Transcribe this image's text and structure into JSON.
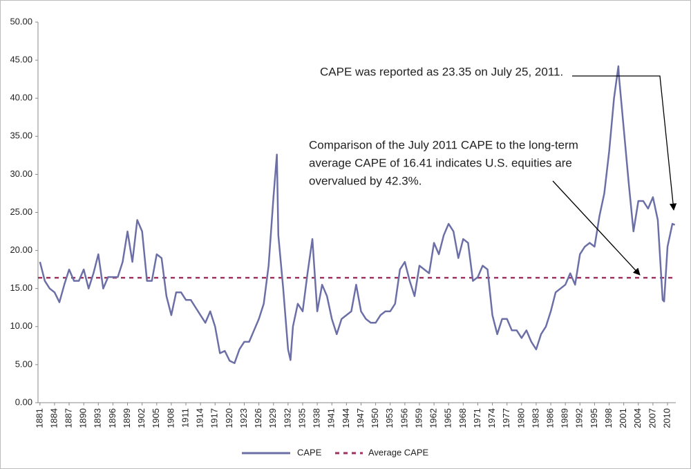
{
  "chart_data": {
    "type": "line",
    "annotations": [
      "CAPE was reported as 23.35 on July 25, 2011.",
      "Comparison of the July 2011 CAPE to the long-term",
      "average CAPE of 16.41 indicates U.S. equities are",
      "overvalued by 42.3%."
    ],
    "x": [
      1881,
      1882,
      1883,
      1884,
      1885,
      1886,
      1887,
      1888,
      1889,
      1890,
      1891,
      1892,
      1893,
      1894,
      1895,
      1896,
      1897,
      1898,
      1899,
      1900,
      1901,
      1902,
      1903,
      1904,
      1905,
      1906,
      1907,
      1908,
      1909,
      1910,
      1911,
      1912,
      1913,
      1914,
      1915,
      1916,
      1917,
      1918,
      1919,
      1920,
      1921,
      1922,
      1923,
      1924,
      1925,
      1926,
      1927,
      1928,
      1929,
      1929.7,
      1930,
      1931,
      1932,
      1932.5,
      1933,
      1934,
      1935,
      1936,
      1937,
      1938,
      1939,
      1940,
      1941,
      1942,
      1943,
      1944,
      1945,
      1946,
      1947,
      1948,
      1949,
      1950,
      1951,
      1952,
      1953,
      1954,
      1955,
      1956,
      1957,
      1958,
      1959,
      1960,
      1961,
      1962,
      1963,
      1964,
      1965,
      1966,
      1967,
      1968,
      1969,
      1970,
      1971,
      1972,
      1973,
      1974,
      1975,
      1976,
      1977,
      1978,
      1979,
      1980,
      1981,
      1982,
      1983,
      1984,
      1985,
      1986,
      1987,
      1988,
      1989,
      1990,
      1991,
      1992,
      1993,
      1994,
      1995,
      1996,
      1997,
      1998,
      1999,
      1999.9,
      2000,
      2001,
      2002,
      2003,
      2004,
      2005,
      2006,
      2007,
      2008,
      2009,
      2009.3,
      2010,
      2011,
      2011.5
    ],
    "series": [
      {
        "name": "CAPE",
        "color": "#6b6fa6",
        "values": [
          18.5,
          16,
          15,
          14.5,
          13.2,
          15.5,
          17.5,
          16,
          16,
          17.5,
          15,
          17,
          19.5,
          15,
          16.5,
          16.5,
          16.5,
          18.5,
          22.5,
          18.5,
          24,
          22.5,
          16,
          16,
          19.5,
          19,
          14,
          11.5,
          14.5,
          14.5,
          13.5,
          13.5,
          12.5,
          11.5,
          10.5,
          12,
          10,
          6.5,
          6.8,
          5.5,
          5.2,
          7,
          8,
          8,
          9.5,
          11,
          13,
          18,
          27,
          32.6,
          22,
          15,
          7,
          5.6,
          10,
          13,
          12,
          17,
          21.5,
          12,
          15.5,
          14,
          11,
          9,
          11,
          11.5,
          12,
          15.5,
          12,
          11,
          10.5,
          10.5,
          11.5,
          12,
          12,
          13,
          17.5,
          18.5,
          16,
          14,
          18,
          17.5,
          17,
          21,
          19.5,
          22,
          23.5,
          22.5,
          19,
          21.5,
          21,
          16,
          16.5,
          18,
          17.5,
          11.5,
          9,
          11,
          11,
          9.5,
          9.5,
          8.5,
          9.5,
          8,
          7,
          9,
          10,
          12,
          14.5,
          15,
          15.5,
          17,
          15.5,
          19.5,
          20.5,
          21,
          20.5,
          24.5,
          27.5,
          33,
          40,
          44.2,
          43,
          36,
          29,
          22.5,
          26.5,
          26.5,
          25.5,
          27,
          24,
          13.5,
          13.3,
          20.5,
          23.5,
          23.35
        ]
      }
    ],
    "reference_lines": [
      {
        "name": "Average CAPE",
        "value": 16.41,
        "color": "#a0305e"
      }
    ],
    "xlim": [
      1880.6,
      2011.7
    ],
    "xticks": [
      1881,
      1884,
      1887,
      1890,
      1893,
      1896,
      1899,
      1902,
      1905,
      1908,
      1911,
      1914,
      1917,
      1920,
      1923,
      1926,
      1929,
      1932,
      1935,
      1938,
      1941,
      1944,
      1947,
      1950,
      1953,
      1956,
      1959,
      1962,
      1965,
      1968,
      1971,
      1974,
      1977,
      1980,
      1983,
      1986,
      1989,
      1992,
      1995,
      1998,
      2001,
      2004,
      2007,
      2010
    ],
    "ylim": [
      0,
      50
    ],
    "yticks": [
      {
        "value": 0,
        "label": "0.00"
      },
      {
        "value": 5,
        "label": "5.00"
      },
      {
        "value": 10,
        "label": "10.00"
      },
      {
        "value": 15,
        "label": "15.00"
      },
      {
        "value": 20,
        "label": "20.00"
      },
      {
        "value": 25,
        "label": "25.00"
      },
      {
        "value": 30,
        "label": "30.00"
      },
      {
        "value": 35,
        "label": "35.00"
      },
      {
        "value": 40,
        "label": "40.00"
      },
      {
        "value": 45,
        "label": "45.00"
      },
      {
        "value": 50,
        "label": "50.00"
      }
    ],
    "legend": "bottom"
  }
}
